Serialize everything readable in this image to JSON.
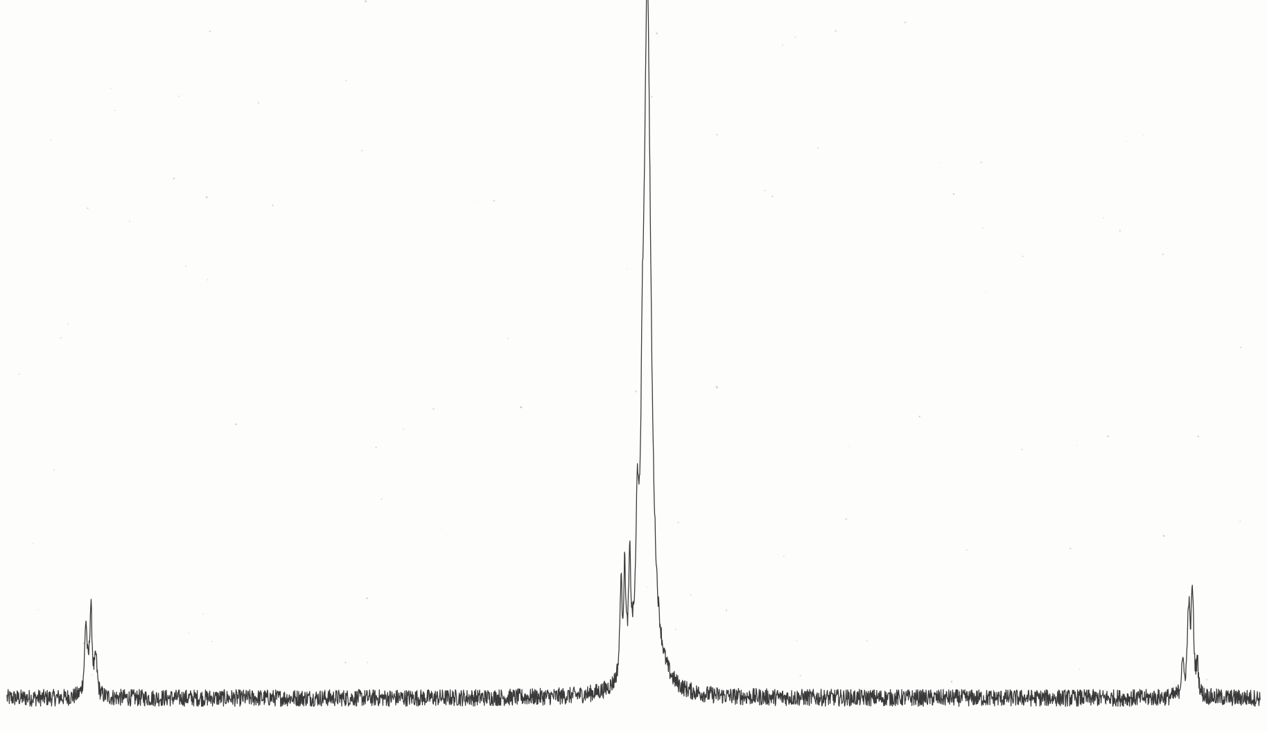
{
  "chart_data": {
    "type": "line",
    "title": "",
    "xlabel": "",
    "ylabel": "",
    "grid": false,
    "legend": "none",
    "xlim": [
      0,
      1
    ],
    "ylim": [
      0,
      1
    ],
    "baseline": 0.02,
    "noise_amplitude": 0.012,
    "series": [
      {
        "line_color": "#3a3a3a",
        "peaks": [
          {
            "x": 0.063,
            "height": 0.1,
            "width": 0.0012
          },
          {
            "x": 0.067,
            "height": 0.12,
            "width": 0.0012
          },
          {
            "x": 0.071,
            "height": 0.05,
            "width": 0.0012
          },
          {
            "x": 0.49,
            "height": 0.13,
            "width": 0.001
          },
          {
            "x": 0.493,
            "height": 0.14,
            "width": 0.001
          },
          {
            "x": 0.497,
            "height": 0.14,
            "width": 0.001
          },
          {
            "x": 0.503,
            "height": 0.16,
            "width": 0.001
          },
          {
            "x": 0.507,
            "height": 0.15,
            "width": 0.001
          },
          {
            "x": 0.511,
            "height": 1.0,
            "width": 0.0035
          },
          {
            "x": 0.938,
            "height": 0.05,
            "width": 0.001
          },
          {
            "x": 0.943,
            "height": 0.12,
            "width": 0.0012
          },
          {
            "x": 0.946,
            "height": 0.14,
            "width": 0.0012
          },
          {
            "x": 0.95,
            "height": 0.04,
            "width": 0.001
          }
        ]
      }
    ]
  }
}
